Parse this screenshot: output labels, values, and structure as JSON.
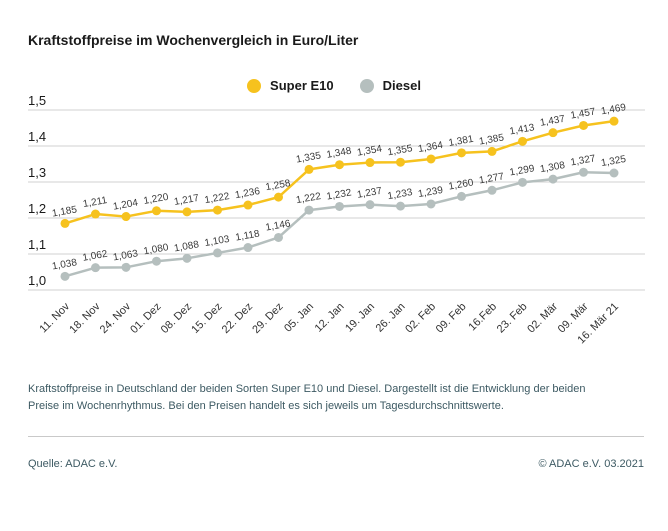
{
  "title": "Kraftstoffpreise im Wochenvergleich in Euro/Liter",
  "chart_data": {
    "type": "line",
    "x": [
      "11. Nov",
      "18. Nov",
      "24. Nov",
      "01. Dez",
      "08. Dez",
      "15. Dez",
      "22. Dez",
      "29. Dez",
      "05. Jan",
      "12. Jan",
      "19. Jan",
      "26. Jan",
      "02. Feb",
      "09. Feb",
      "16.Feb",
      "23. Feb",
      "02. Mär",
      "09. Mär",
      "16. Mär 21"
    ],
    "series": [
      {
        "name": "Super E10",
        "color": "#f6c21e",
        "values": [
          1.185,
          1.211,
          1.204,
          1.22,
          1.217,
          1.222,
          1.236,
          1.258,
          1.335,
          1.348,
          1.354,
          1.355,
          1.364,
          1.381,
          1.385,
          1.413,
          1.437,
          1.457,
          1.469
        ]
      },
      {
        "name": "Diesel",
        "color": "#b5bfbe",
        "values": [
          1.038,
          1.062,
          1.063,
          1.08,
          1.088,
          1.103,
          1.118,
          1.146,
          1.222,
          1.232,
          1.237,
          1.233,
          1.239,
          1.26,
          1.277,
          1.299,
          1.308,
          1.327,
          1.325
        ]
      }
    ],
    "ylim": [
      1.0,
      1.5
    ],
    "yticks": [
      "1,5",
      "1,4",
      "1,3",
      "1,2",
      "1,1",
      "1,0"
    ],
    "grid": true,
    "legend_position": "top-center",
    "value_labels": true,
    "decimal_separator": ","
  },
  "footnote": "Kraftstoffpreise in Deutschland der beiden Sorten Super E10 und Diesel. Dargestellt ist die Entwicklung der beiden Preise im Wochenrhythmus. Bei den Preisen handelt es sich jeweils um Tagesdurchschnittswerte.",
  "source": "Quelle: ADAC e.V.",
  "copyright": "© ADAC e.V. 03.2021",
  "colors": {
    "accent_yellow": "#f6c21e",
    "diesel_gray": "#b5bfbe",
    "grid": "#d2d2d2",
    "label_text": "#3b3b3b",
    "muted_text": "#3d5a63"
  }
}
